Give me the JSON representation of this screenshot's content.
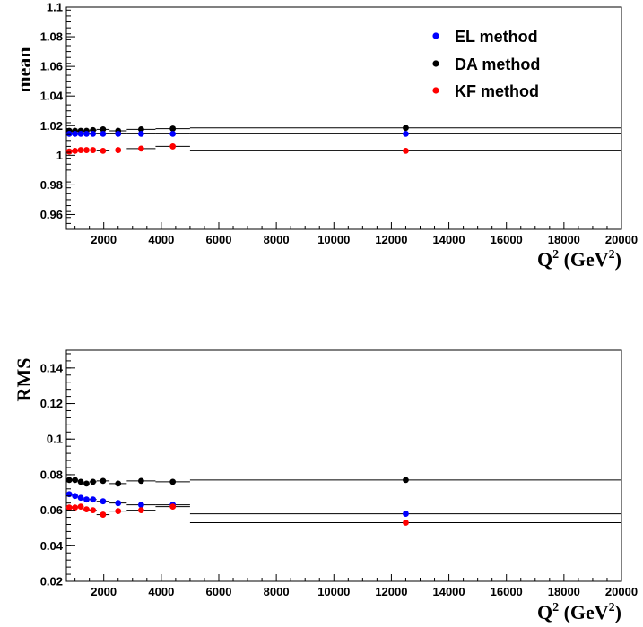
{
  "chart_data": [
    {
      "type": "scatter",
      "ylabel": "mean",
      "xlabel": "Q",
      "xlabel_sup": "2",
      "xlabel_unit_open": "(GeV",
      "xlabel_unit_sup": "2",
      "xlabel_unit_close": ")",
      "xlim": [
        700,
        20000
      ],
      "ylim": [
        0.95,
        1.1
      ],
      "xticks": [
        2000,
        4000,
        6000,
        8000,
        10000,
        12000,
        14000,
        16000,
        18000,
        20000
      ],
      "yticks": [
        0.96,
        0.98,
        1,
        1.02,
        1.04,
        1.06,
        1.08,
        1.1
      ],
      "ytick_labels": [
        "0.96",
        "0.98",
        "1",
        "1.02",
        "1.04",
        "1.06",
        "1.08",
        "1.1"
      ],
      "grid": false,
      "legend_position": "top-right",
      "x_bins": [
        [
          700,
          900
        ],
        [
          900,
          1100
        ],
        [
          1100,
          1300
        ],
        [
          1300,
          1500
        ],
        [
          1500,
          1750
        ],
        [
          1750,
          2200
        ],
        [
          2200,
          2800
        ],
        [
          2800,
          3800
        ],
        [
          3800,
          5000
        ],
        [
          5000,
          20000
        ]
      ],
      "x": [
        800,
        1000,
        1200,
        1400,
        1625,
        1975,
        2500,
        3300,
        4400,
        12500
      ],
      "series": [
        {
          "name": "DA method",
          "color": "#000000",
          "values": [
            1.0165,
            1.0165,
            1.0165,
            1.0165,
            1.017,
            1.0175,
            1.0165,
            1.0175,
            1.018,
            1.0185
          ]
        },
        {
          "name": "EL method",
          "color": "#0000ff",
          "values": [
            1.0145,
            1.0145,
            1.0145,
            1.0145,
            1.0145,
            1.0145,
            1.0145,
            1.0145,
            1.0145,
            1.0145
          ]
        },
        {
          "name": "KF method",
          "color": "#ff0000",
          "values": [
            1.0025,
            1.003,
            1.0035,
            1.0035,
            1.0035,
            1.003,
            1.0035,
            1.0045,
            1.006,
            1.003
          ]
        }
      ]
    },
    {
      "type": "scatter",
      "ylabel": "RMS",
      "xlabel": "Q",
      "xlabel_sup": "2",
      "xlabel_unit_open": "(GeV",
      "xlabel_unit_sup": "2",
      "xlabel_unit_close": ")",
      "xlim": [
        700,
        20000
      ],
      "ylim": [
        0.02,
        0.15
      ],
      "xticks": [
        2000,
        4000,
        6000,
        8000,
        10000,
        12000,
        14000,
        16000,
        18000,
        20000
      ],
      "yticks": [
        0.02,
        0.04,
        0.06,
        0.08,
        0.1,
        0.12,
        0.14
      ],
      "ytick_labels": [
        "0.02",
        "0.04",
        "0.06",
        "0.08",
        "0.1",
        "0.12",
        "0.14"
      ],
      "grid": false,
      "x_bins": [
        [
          700,
          900
        ],
        [
          900,
          1100
        ],
        [
          1100,
          1300
        ],
        [
          1300,
          1500
        ],
        [
          1500,
          1750
        ],
        [
          1750,
          2200
        ],
        [
          2200,
          2800
        ],
        [
          2800,
          3800
        ],
        [
          3800,
          5000
        ],
        [
          5000,
          20000
        ]
      ],
      "x": [
        800,
        1000,
        1200,
        1400,
        1625,
        1975,
        2500,
        3300,
        4400,
        12500
      ],
      "series": [
        {
          "name": "DA method",
          "color": "#000000",
          "values": [
            0.077,
            0.077,
            0.076,
            0.075,
            0.076,
            0.0765,
            0.075,
            0.0765,
            0.076,
            0.077
          ]
        },
        {
          "name": "EL method",
          "color": "#0000ff",
          "values": [
            0.069,
            0.068,
            0.067,
            0.066,
            0.066,
            0.065,
            0.064,
            0.063,
            0.063,
            0.058
          ]
        },
        {
          "name": "KF method",
          "color": "#ff0000",
          "values": [
            0.0615,
            0.0615,
            0.062,
            0.0605,
            0.06,
            0.0575,
            0.0595,
            0.06,
            0.062,
            0.053
          ]
        }
      ]
    }
  ]
}
